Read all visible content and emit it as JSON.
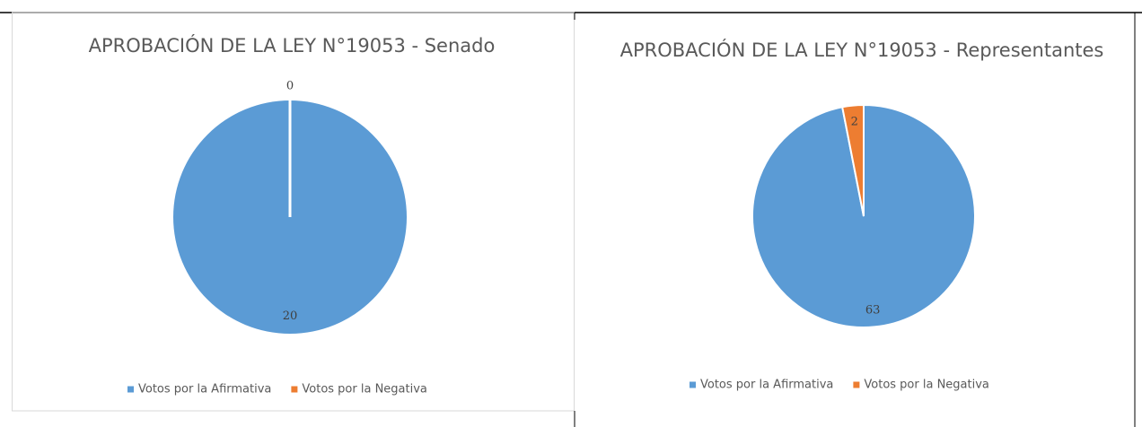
{
  "chart_data": [
    {
      "type": "pie",
      "title": "APROBACIÓN DE LA LEY N°19053 - Senado",
      "categories": [
        "Votos por la Afirmativa",
        "Votos por la Negativa"
      ],
      "values": [
        20,
        0
      ],
      "colors": [
        "#5b9bd5",
        "#ed7d31"
      ],
      "legend": "bottom"
    },
    {
      "type": "pie",
      "title": "APROBACIÓN DE LA LEY N°19053 - Representantes",
      "categories": [
        "Votos por la Afirmativa",
        "Votos por la Negativa"
      ],
      "values": [
        63,
        2
      ],
      "colors": [
        "#5b9bd5",
        "#ed7d31"
      ],
      "legend": "bottom"
    }
  ]
}
